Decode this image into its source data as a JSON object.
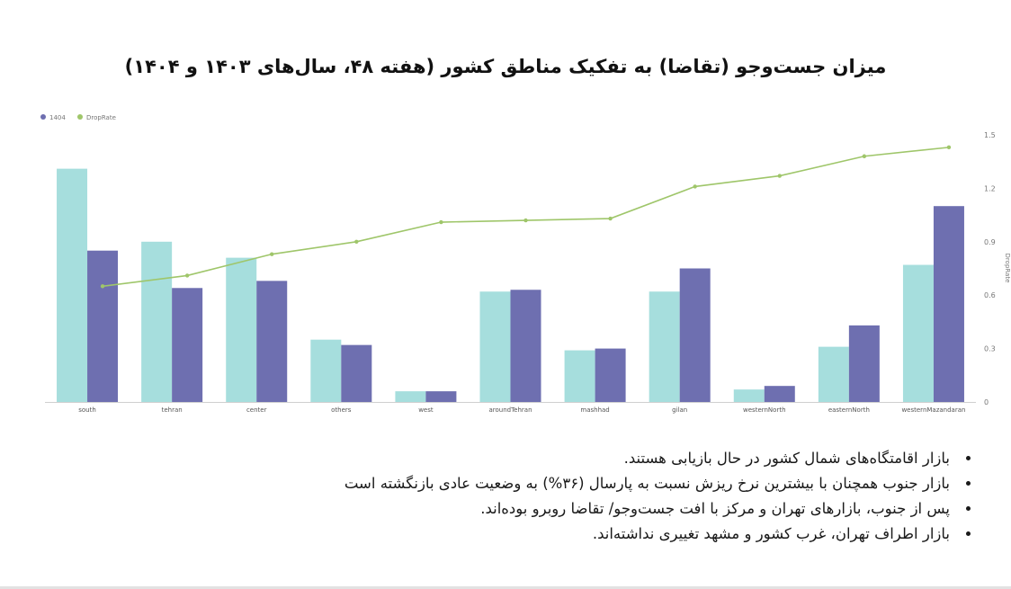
{
  "title": "میزان جست‌وجو (تقاضا) به تفکیک مناطق کشور (هفته ۴۸، سال‌های ۱۴۰۳ و ۱۴۰۴)",
  "chart_data": {
    "type": "bar",
    "categories": [
      "south",
      "tehran",
      "center",
      "others",
      "west",
      "aroundTehran",
      "mashhad",
      "gilan",
      "westernNorth",
      "easternNorth",
      "westernMazandaran"
    ],
    "series": [
      {
        "name": "",
        "type": "bar",
        "color": "#a6dedd",
        "values": [
          1.31,
          0.9,
          0.81,
          0.35,
          0.06,
          0.62,
          0.29,
          0.62,
          0.07,
          0.31,
          0.77
        ]
      },
      {
        "name": "1404",
        "type": "bar",
        "color": "#6e6fb0",
        "values": [
          0.85,
          0.64,
          0.68,
          0.32,
          0.06,
          0.63,
          0.3,
          0.75,
          0.09,
          0.43,
          1.1
        ]
      },
      {
        "name": "DropRate",
        "type": "line",
        "color": "#9fc66a",
        "values": [
          0.65,
          0.71,
          0.83,
          0.9,
          1.01,
          1.02,
          1.03,
          1.21,
          1.27,
          1.38,
          1.43
        ]
      }
    ],
    "y_ticks": [
      "0",
      "0.3",
      "0.6",
      "0.9",
      "1.2",
      "1.5"
    ],
    "ylim": [
      0,
      1.5
    ],
    "y_right_label": "DropRate",
    "legend_position": "top-left",
    "grid": false
  },
  "bullets": [
    "بازار اقامتگاه‌های شمال کشور در حال بازیابی هستند.",
    "بازار جنوب همچنان با بیشترین نرخ ریزش نسبت به پارسال (۳۶%) به وضعیت عادی بازنگشته است",
    "پس از جنوب، بازارهای تهران و مرکز با افت جست‌وجو/ تقاضا روبرو بوده‌اند.",
    "بازار اطراف تهران، غرب کشور و مشهد تغییری نداشته‌اند."
  ]
}
